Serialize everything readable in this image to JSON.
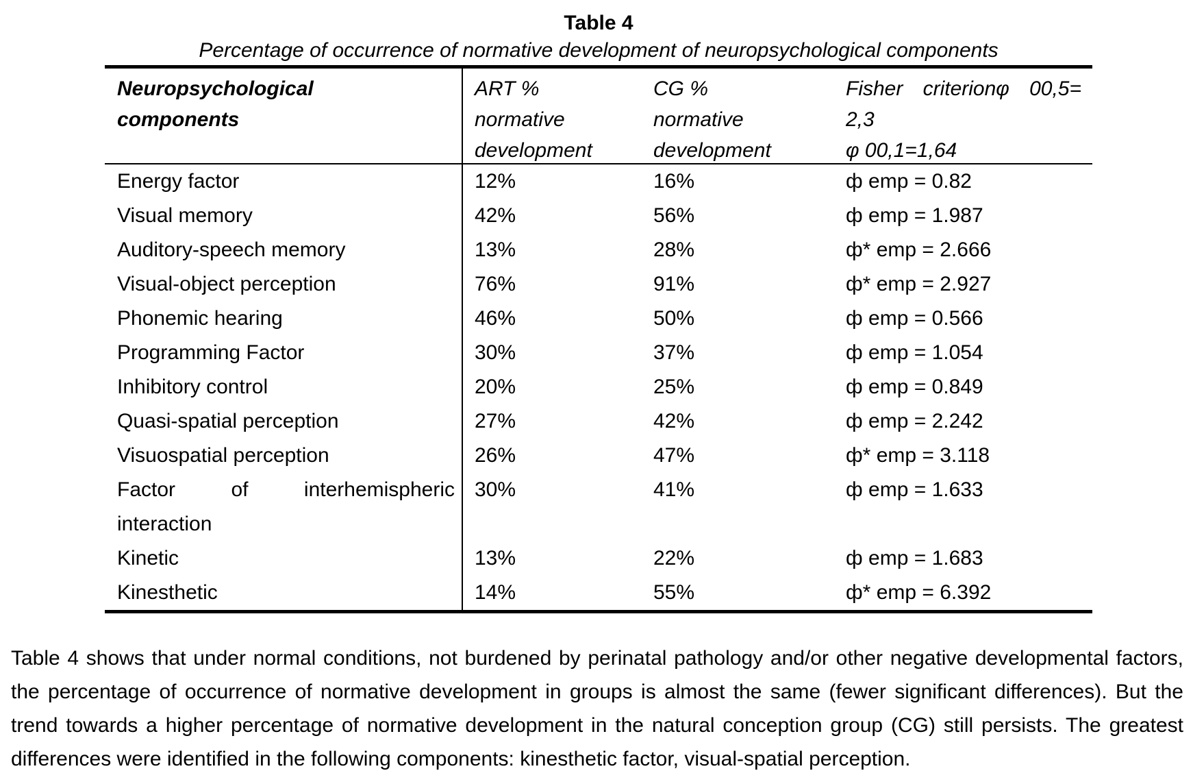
{
  "caption": {
    "label": "Table 4",
    "subtitle": "Percentage of occurrence of normative development of neuropsychological components"
  },
  "table": {
    "header": {
      "col1": {
        "line1": "Neuropsychological",
        "line2": "components"
      },
      "col2": {
        "line1": "ART %",
        "line2": "normative",
        "line3": "development"
      },
      "col3": {
        "line1": "CG %",
        "line2": "normative",
        "line3": "development"
      },
      "col4": {
        "line1_words": [
          "Fisher",
          "criterionφ",
          "00,5="
        ],
        "line2": "2,3",
        "line3": "φ 00,1=1,64"
      }
    },
    "rows": [
      {
        "component": "Energy factor",
        "art": "12%",
        "cg": "16%",
        "fisher": "ф emp = 0.82"
      },
      {
        "component": "Visual memory",
        "art": "42%",
        "cg": "56%",
        "fisher": "ф emp = 1.987"
      },
      {
        "component": "Auditory-speech memory",
        "art": "13%",
        "cg": "28%",
        "fisher": "ф* emp = 2.666"
      },
      {
        "component": "Visual-object perception",
        "art": "76%",
        "cg": "91%",
        "fisher": "ф* emp = 2.927"
      },
      {
        "component": "Phonemic hearing",
        "art": "46%",
        "cg": "50%",
        "fisher": "ф emp = 0.566"
      },
      {
        "component": "Programming Factor",
        "art": "30%",
        "cg": "37%",
        "fisher": "ф emp = 1.054"
      },
      {
        "component": "Inhibitory control",
        "art": "20%",
        "cg": "25%",
        "fisher": "ф emp = 0.849"
      },
      {
        "component": "Quasi-spatial perception",
        "art": "27%",
        "cg": "42%",
        "fisher": "ф emp = 2.242"
      },
      {
        "component": "Visuospatial perception",
        "art": "26%",
        "cg": "47%",
        "fisher": "ф* emp = 3.118"
      },
      {
        "component_words": [
          "Factor",
          "of",
          "interhemispheric"
        ],
        "component_line2": "interaction",
        "art": "30%",
        "cg": "41%",
        "fisher": "ф emp = 1.633"
      },
      {
        "component": "Kinetic",
        "art": "13%",
        "cg": "22%",
        "fisher": "ф emp = 1.683"
      },
      {
        "component": "Kinesthetic",
        "art": "14%",
        "cg": "55%",
        "fisher": "ф* emp = 6.392"
      }
    ]
  },
  "paragraph": "Table 4 shows that under normal conditions, not burdened by perinatal pathology and/or other negative developmental factors, the percentage of occurrence of normative development in groups is almost the same (fewer significant differences). But the trend towards a higher percentage of normative development in the natural conception group (CG) still persists. The greatest differences were identified in the following components: kinesthetic factor, visual-spatial perception.",
  "colors": {
    "text": "#000000",
    "background": "#ffffff",
    "rule": "#000000"
  }
}
